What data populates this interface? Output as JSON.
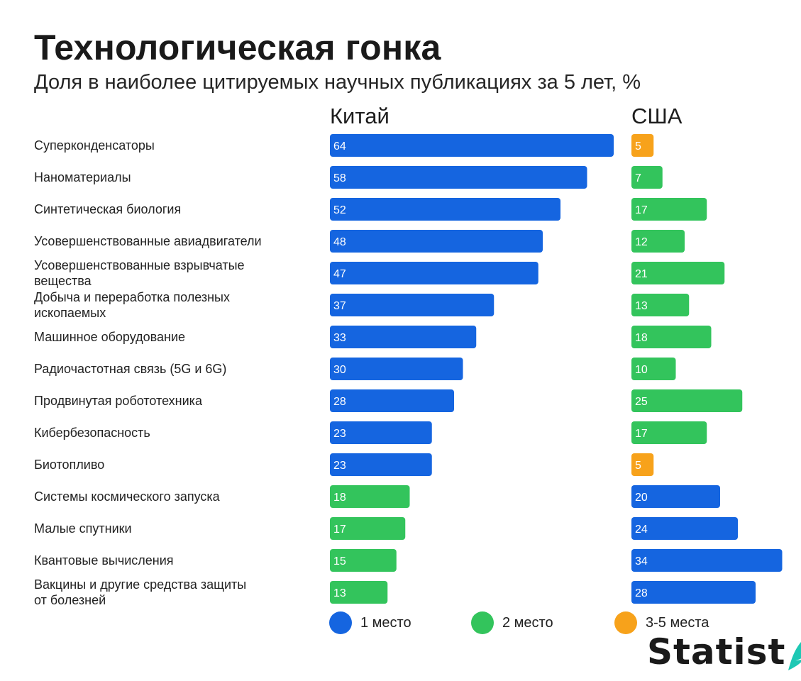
{
  "header": {
    "title": "Технологическая гонка",
    "subtitle": "Доля в наиболее цитируемых научных публикациях за 5 лет, %"
  },
  "columns": {
    "left": "Китай",
    "right": "США"
  },
  "colors": {
    "first": "#1565e0",
    "second": "#33c45c",
    "third_fifth": "#f7a21b"
  },
  "legend": [
    {
      "label": "1 место",
      "color": "#1565e0"
    },
    {
      "label": "2 место",
      "color": "#33c45c"
    },
    {
      "label": "3-5 места",
      "color": "#f7a21b"
    }
  ],
  "logo": {
    "text": "Statist"
  },
  "chart_data": {
    "type": "bar",
    "orientation": "horizontal",
    "title": "Технологическая гонка",
    "subtitle": "Доля в наиболее цитируемых научных публикациях за 5 лет, %",
    "categories": [
      [
        "Суперконденсаторы"
      ],
      [
        "Наноматериалы"
      ],
      [
        "Синтетическая биология"
      ],
      [
        "Усовершенствованные авиадвигатели"
      ],
      [
        "Усовершенствованные взрывчатые",
        "вещества"
      ],
      [
        "Добыча и переработка полезных",
        "ископаемых"
      ],
      [
        "Машинное оборудование"
      ],
      [
        "Радиочастотная связь (5G и 6G)"
      ],
      [
        "Продвинутая робототехника"
      ],
      [
        "Кибербезопасность"
      ],
      [
        "Биотопливо"
      ],
      [
        "Системы космического запуска"
      ],
      [
        "Малые спутники"
      ],
      [
        "Квантовые вычисления"
      ],
      [
        "Вакцины и другие средства защиты",
        "от болезней"
      ]
    ],
    "series": [
      {
        "name": "Китай",
        "values": [
          64,
          58,
          52,
          48,
          47,
          37,
          33,
          30,
          28,
          23,
          23,
          18,
          17,
          15,
          13
        ],
        "ranks": [
          "first",
          "first",
          "first",
          "first",
          "first",
          "first",
          "first",
          "first",
          "first",
          "first",
          "first",
          "second",
          "second",
          "second",
          "second"
        ]
      },
      {
        "name": "США",
        "values": [
          5,
          7,
          17,
          12,
          21,
          13,
          18,
          10,
          25,
          17,
          5,
          20,
          24,
          34,
          28
        ],
        "ranks": [
          "third_fifth",
          "second",
          "second",
          "second",
          "second",
          "second",
          "second",
          "second",
          "second",
          "second",
          "third_fifth",
          "first",
          "first",
          "first",
          "first"
        ]
      }
    ]
  }
}
